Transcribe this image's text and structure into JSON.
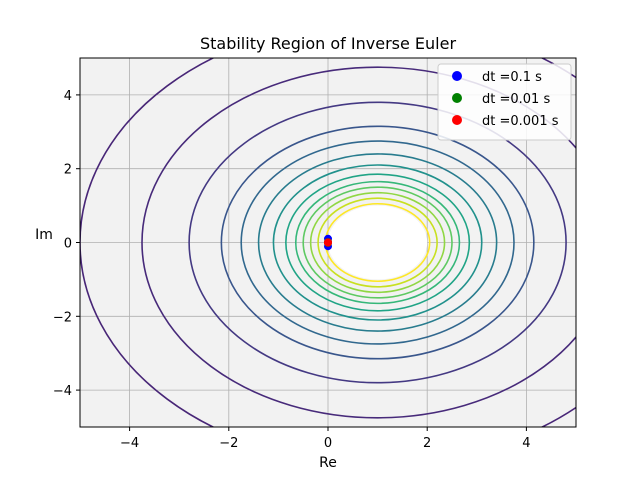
{
  "chart_data": {
    "type": "contour",
    "title": "Stability Region of Inverse Euler",
    "xlabel": "Re",
    "ylabel": "Im",
    "xlim": [
      -5,
      5
    ],
    "ylim": [
      -5,
      5
    ],
    "xticks": [
      -4,
      -2,
      0,
      2,
      4
    ],
    "yticks": [
      -4,
      -2,
      0,
      2,
      4
    ],
    "xtick_labels": [
      "−4",
      "−2",
      "0",
      "2",
      "4"
    ],
    "ytick_labels": [
      "−4",
      "−2",
      "0",
      "2",
      "4"
    ],
    "grid": true,
    "legend_position": "top-right",
    "plot_background": "#f2f2f2",
    "unstable_region_color": "#ffffff",
    "contours": {
      "center": [
        1,
        0
      ],
      "radii": [
        1.05,
        1.2,
        1.35,
        1.5,
        1.65,
        1.85,
        2.1,
        2.4,
        2.75,
        3.15,
        3.8,
        4.75,
        6.0
      ],
      "colors": [
        "#fde725",
        "#c8e020",
        "#90d743",
        "#5ec962",
        "#35b779",
        "#20a486",
        "#21918c",
        "#287c8e",
        "#31688e",
        "#39568c",
        "#443983",
        "#472a7a",
        "#482677"
      ]
    },
    "series": [
      {
        "name": "dt =0.1 s",
        "color": "#0000ff",
        "points": [
          [
            0,
            0.1
          ],
          [
            0,
            -0.1
          ]
        ]
      },
      {
        "name": "dt =0.01 s",
        "color": "#008000",
        "points": [
          [
            0,
            0.01
          ],
          [
            0,
            -0.01
          ]
        ]
      },
      {
        "name": "dt =0.001 s",
        "color": "#ff0000",
        "points": [
          [
            0,
            0.001
          ],
          [
            0,
            -0.001
          ]
        ]
      }
    ]
  }
}
